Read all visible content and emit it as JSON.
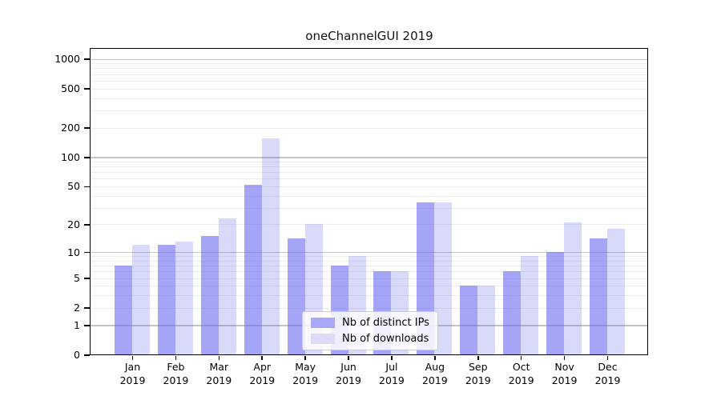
{
  "title": "oneChannelGUI 2019",
  "chart_data": {
    "type": "bar",
    "title": "oneChannelGUI 2019",
    "categories": [
      "Jan 2019",
      "Feb 2019",
      "Mar 2019",
      "Apr 2019",
      "May 2019",
      "Jun 2019",
      "Jul 2019",
      "Aug 2019",
      "Sep 2019",
      "Oct 2019",
      "Nov 2019",
      "Dec 2019"
    ],
    "series": [
      {
        "name": "Nb of distinct IPs",
        "color": "#a8a8f7",
        "fill": "rgba(110,110,243,0.62)",
        "values": [
          7,
          12,
          15,
          52,
          14,
          7,
          6,
          34,
          4,
          6,
          10,
          14
        ]
      },
      {
        "name": "Nb of downloads",
        "color": "#dcdcfa",
        "fill": "rgba(96,96,232,0.24)",
        "values": [
          12,
          13,
          23,
          155,
          20,
          9,
          6,
          34,
          4,
          9,
          21,
          18
        ]
      }
    ],
    "xlabel": "",
    "ylabel": "",
    "y_scale": "log1p",
    "ylim": [
      0,
      1300
    ],
    "y_ticks": [
      0,
      1,
      2,
      5,
      10,
      20,
      50,
      100,
      200,
      500,
      1000
    ],
    "y_major_gridlines": [
      1,
      10,
      100,
      1000
    ],
    "y_minor_gridlines": [
      2,
      3,
      4,
      5,
      6,
      7,
      8,
      9,
      20,
      30,
      40,
      50,
      60,
      70,
      80,
      90,
      200,
      300,
      400,
      500,
      600,
      700,
      800,
      900
    ],
    "grid": true,
    "legend_position": "lower center"
  },
  "colors": {
    "background": "#ffffff",
    "axis": "#000000",
    "major_grid": "#c4c4c4",
    "minor_grid": "#ededed",
    "legend_border": "#cccccc"
  }
}
